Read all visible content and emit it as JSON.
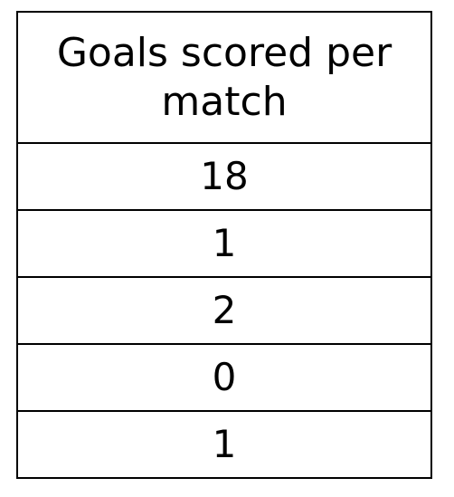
{
  "table": {
    "header": "Goals scored per match",
    "rows": [
      "18",
      "1",
      "2",
      "0",
      "1"
    ]
  }
}
